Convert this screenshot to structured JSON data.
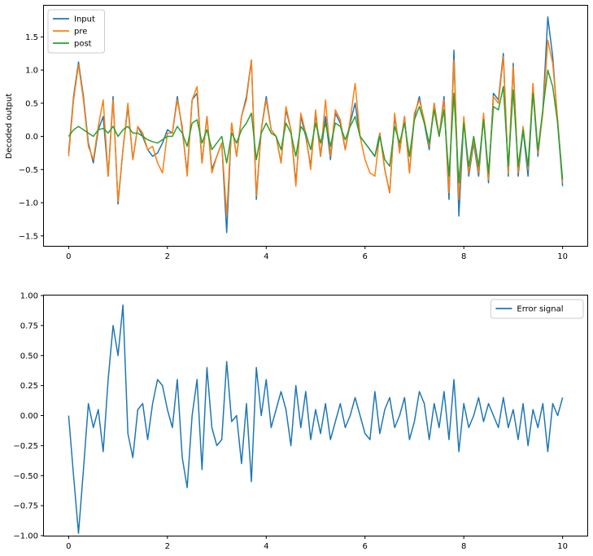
{
  "chart_data": [
    {
      "type": "line",
      "title": "",
      "xlabel": "",
      "ylabel": "Decoded output",
      "xlim": [
        -0.5,
        10.5
      ],
      "ylim": [
        -1.65,
        1.97
      ],
      "xticks": [
        0,
        2,
        4,
        6,
        8,
        10
      ],
      "xtick_labels": [
        "0",
        "2",
        "4",
        "6",
        "8",
        "10"
      ],
      "yticks": [
        -1.5,
        -1.0,
        -0.5,
        0.0,
        0.5,
        1.0,
        1.5
      ],
      "ytick_labels": [
        "−1.5",
        "−1.0",
        "−0.5",
        "0.0",
        "0.5",
        "1.0",
        "1.5"
      ],
      "legend_position": "top-left",
      "grid": false,
      "x": [
        0,
        0.1,
        0.2,
        0.3,
        0.4,
        0.5,
        0.6,
        0.7,
        0.8,
        0.9,
        1.0,
        1.1,
        1.2,
        1.3,
        1.4,
        1.5,
        1.6,
        1.7,
        1.8,
        1.9,
        2.0,
        2.1,
        2.2,
        2.3,
        2.4,
        2.5,
        2.6,
        2.7,
        2.8,
        2.9,
        3.0,
        3.1,
        3.2,
        3.3,
        3.4,
        3.5,
        3.6,
        3.7,
        3.8,
        3.9,
        4.0,
        4.1,
        4.2,
        4.3,
        4.4,
        4.5,
        4.6,
        4.7,
        4.8,
        4.9,
        5.0,
        5.1,
        5.2,
        5.3,
        5.4,
        5.5,
        5.6,
        5.7,
        5.8,
        5.9,
        6.0,
        6.1,
        6.2,
        6.3,
        6.4,
        6.5,
        6.6,
        6.7,
        6.8,
        6.9,
        7.0,
        7.1,
        7.2,
        7.3,
        7.4,
        7.5,
        7.6,
        7.7,
        7.8,
        7.9,
        8.0,
        8.1,
        8.2,
        8.3,
        8.4,
        8.5,
        8.6,
        8.7,
        8.8,
        8.9,
        9.0,
        9.1,
        9.2,
        9.3,
        9.4,
        9.5,
        9.6,
        9.7,
        9.8,
        9.9,
        10.0
      ],
      "series": [
        {
          "name": "Input",
          "color": "#1f77b4",
          "values": [
            -0.25,
            0.6,
            1.12,
            0.6,
            -0.1,
            -0.4,
            0.1,
            0.3,
            -0.6,
            0.6,
            -1.02,
            -0.2,
            0.45,
            -0.35,
            0.15,
            0.0,
            -0.2,
            -0.3,
            -0.25,
            -0.1,
            0.1,
            0.05,
            0.6,
            0.1,
            -0.55,
            0.55,
            0.65,
            -0.4,
            0.3,
            -0.5,
            -0.3,
            -0.1,
            -1.45,
            0.2,
            -0.3,
            0.3,
            0.6,
            1.15,
            -0.95,
            0.1,
            0.6,
            0.1,
            0.0,
            -0.4,
            0.4,
            0.1,
            -0.7,
            0.3,
            0.0,
            -0.45,
            0.35,
            -0.3,
            0.3,
            -0.35,
            0.35,
            0.2,
            -0.2,
            0.2,
            0.5,
            0.0,
            -0.1,
            -0.2,
            -0.3,
            0.05,
            -0.5,
            -0.85,
            0.3,
            -0.2,
            0.3,
            -0.55,
            0.3,
            0.6,
            0.2,
            -0.2,
            0.5,
            0.0,
            0.6,
            -0.95,
            1.3,
            -1.2,
            0.25,
            -0.6,
            -0.1,
            -0.6,
            0.3,
            -0.7,
            0.65,
            0.55,
            1.25,
            -0.6,
            1.1,
            -0.6,
            0.1,
            -0.6,
            0.7,
            -0.3,
            0.4,
            1.8,
            1.2,
            0.2,
            -0.75
          ]
        },
        {
          "name": "pre",
          "color": "#ff7f0e",
          "values": [
            -0.3,
            0.55,
            1.08,
            0.55,
            -0.15,
            -0.35,
            0.15,
            0.55,
            -0.6,
            0.55,
            -0.98,
            -0.2,
            0.5,
            -0.35,
            0.15,
            0.05,
            -0.2,
            -0.15,
            -0.4,
            -0.55,
            0.05,
            0.05,
            0.55,
            0.15,
            -0.6,
            0.55,
            0.75,
            -0.4,
            0.3,
            -0.55,
            -0.3,
            -0.1,
            -1.2,
            0.2,
            -0.3,
            0.3,
            0.55,
            1.15,
            -0.9,
            0.1,
            0.55,
            0.1,
            0.0,
            -0.4,
            0.45,
            0.1,
            -0.75,
            0.35,
            0.05,
            -0.5,
            0.4,
            -0.3,
            0.55,
            -0.3,
            0.4,
            0.25,
            -0.2,
            0.25,
            0.8,
            0.0,
            -0.35,
            -0.55,
            -0.6,
            0.05,
            -0.5,
            -0.85,
            0.35,
            -0.25,
            0.3,
            -0.55,
            0.35,
            0.55,
            0.25,
            -0.15,
            0.5,
            0.0,
            0.55,
            -0.85,
            1.15,
            -0.95,
            0.3,
            -0.55,
            -0.05,
            -0.55,
            0.35,
            -0.65,
            0.6,
            0.5,
            1.2,
            -0.55,
            1.05,
            -0.55,
            0.15,
            -0.5,
            0.8,
            -0.25,
            0.35,
            1.45,
            1.1,
            0.25,
            -0.7
          ]
        },
        {
          "name": "post",
          "color": "#2ca02c",
          "values": [
            0.0,
            0.1,
            0.15,
            0.1,
            0.05,
            0.0,
            0.1,
            0.12,
            0.05,
            0.15,
            0.0,
            0.1,
            0.15,
            0.05,
            0.05,
            0.0,
            -0.05,
            -0.08,
            -0.1,
            -0.05,
            0.0,
            0.0,
            0.15,
            0.05,
            -0.15,
            0.2,
            0.25,
            -0.1,
            0.1,
            -0.2,
            -0.1,
            0.0,
            -0.4,
            0.05,
            -0.1,
            0.1,
            0.2,
            0.35,
            -0.35,
            0.05,
            0.2,
            0.05,
            0.0,
            -0.2,
            0.2,
            0.05,
            -0.3,
            0.15,
            0.05,
            -0.2,
            0.2,
            -0.1,
            0.2,
            -0.15,
            0.2,
            0.15,
            -0.05,
            0.15,
            0.3,
            0.0,
            -0.1,
            -0.2,
            -0.3,
            0.0,
            -0.35,
            -0.45,
            0.15,
            -0.1,
            0.2,
            -0.3,
            0.25,
            0.45,
            0.2,
            -0.1,
            0.4,
            0.0,
            0.4,
            -0.6,
            0.65,
            -0.7,
            0.2,
            -0.45,
            0.0,
            -0.45,
            0.25,
            -0.55,
            0.45,
            0.4,
            0.75,
            -0.45,
            0.7,
            -0.45,
            0.1,
            -0.45,
            0.65,
            -0.2,
            0.4,
            1.0,
            0.75,
            0.2,
            -0.65
          ]
        }
      ]
    },
    {
      "type": "line",
      "title": "",
      "xlabel": "",
      "ylabel": "",
      "xlim": [
        -0.5,
        10.5
      ],
      "ylim": [
        -1.0,
        1.0
      ],
      "xticks": [
        0,
        2,
        4,
        6,
        8,
        10
      ],
      "xtick_labels": [
        "0",
        "2",
        "4",
        "6",
        "8",
        "10"
      ],
      "yticks": [
        -1.0,
        -0.75,
        -0.5,
        -0.25,
        0.0,
        0.25,
        0.5,
        0.75,
        1.0
      ],
      "ytick_labels": [
        "−1.00",
        "−0.75",
        "−0.50",
        "−0.25",
        "0.00",
        "0.25",
        "0.50",
        "0.75",
        "1.00"
      ],
      "legend_position": "top-right",
      "grid": false,
      "x": [
        0,
        0.1,
        0.2,
        0.3,
        0.4,
        0.5,
        0.6,
        0.7,
        0.8,
        0.9,
        1.0,
        1.1,
        1.2,
        1.3,
        1.4,
        1.5,
        1.6,
        1.7,
        1.8,
        1.9,
        2.0,
        2.1,
        2.2,
        2.3,
        2.4,
        2.5,
        2.6,
        2.7,
        2.8,
        2.9,
        3.0,
        3.1,
        3.2,
        3.3,
        3.4,
        3.5,
        3.6,
        3.7,
        3.8,
        3.9,
        4.0,
        4.1,
        4.2,
        4.3,
        4.4,
        4.5,
        4.6,
        4.7,
        4.8,
        4.9,
        5.0,
        5.1,
        5.2,
        5.3,
        5.4,
        5.5,
        5.6,
        5.7,
        5.8,
        5.9,
        6.0,
        6.1,
        6.2,
        6.3,
        6.4,
        6.5,
        6.6,
        6.7,
        6.8,
        6.9,
        7.0,
        7.1,
        7.2,
        7.3,
        7.4,
        7.5,
        7.6,
        7.7,
        7.8,
        7.9,
        8.0,
        8.1,
        8.2,
        8.3,
        8.4,
        8.5,
        8.6,
        8.7,
        8.8,
        8.9,
        9.0,
        9.1,
        9.2,
        9.3,
        9.4,
        9.5,
        9.6,
        9.7,
        9.8,
        9.9,
        10.0
      ],
      "series": [
        {
          "name": "Error signal",
          "color": "#1f77b4",
          "values": [
            0.0,
            -0.5,
            -0.98,
            -0.45,
            0.1,
            -0.1,
            0.05,
            -0.3,
            0.3,
            0.75,
            0.5,
            0.92,
            -0.15,
            -0.35,
            0.05,
            0.1,
            -0.2,
            0.1,
            0.3,
            0.25,
            0.05,
            -0.1,
            0.3,
            -0.35,
            -0.6,
            0.0,
            0.3,
            -0.45,
            0.4,
            -0.1,
            -0.25,
            -0.2,
            0.45,
            -0.05,
            0.0,
            -0.4,
            0.1,
            -0.55,
            0.4,
            0.0,
            0.3,
            -0.1,
            0.05,
            0.2,
            0.05,
            -0.25,
            0.25,
            -0.1,
            0.2,
            -0.2,
            0.05,
            -0.15,
            0.1,
            -0.2,
            -0.05,
            0.1,
            -0.1,
            0.0,
            0.15,
            0.0,
            -0.15,
            -0.2,
            0.2,
            -0.15,
            0.05,
            0.15,
            -0.1,
            0.0,
            0.15,
            -0.2,
            -0.05,
            0.2,
            0.1,
            -0.2,
            0.1,
            -0.1,
            0.2,
            -0.2,
            0.3,
            -0.3,
            0.1,
            -0.1,
            0.0,
            0.15,
            -0.05,
            0.1,
            0.0,
            -0.1,
            0.15,
            -0.1,
            0.05,
            -0.2,
            0.1,
            -0.25,
            0.05,
            -0.1,
            0.1,
            -0.3,
            0.1,
            0.0,
            0.15
          ]
        }
      ]
    }
  ]
}
